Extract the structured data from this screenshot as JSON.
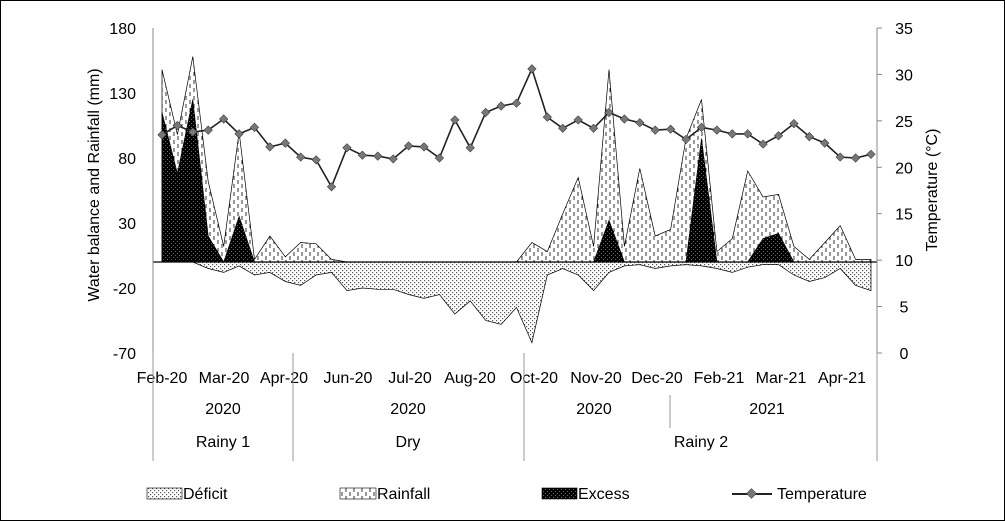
{
  "chart_data": {
    "type": "area+line",
    "title": "",
    "ylabel": "Water balance and Rainfall (mm)",
    "y2label": "Temperature (°C)",
    "ylim": [
      -70,
      180
    ],
    "y2lim": [
      0,
      35
    ],
    "yticks": [
      "180",
      "130",
      "80",
      "30",
      "-20",
      "-70"
    ],
    "y2ticks": [
      "35",
      "30",
      "25",
      "20",
      "15",
      "10",
      "5",
      "0"
    ],
    "x_month_labels": [
      "Feb-20",
      "Mar-20",
      "Apr-20",
      "Jun-20",
      "Jul-20",
      "Aug-20",
      "Oct-20",
      "Nov-20",
      "Dec-20",
      "Feb-21",
      "Mar-21",
      "Apr-21"
    ],
    "year_labels": [
      "2020",
      "2020",
      "2020",
      "2021"
    ],
    "season_labels": [
      "Rainy 1",
      "Dry",
      "Rainy 2"
    ],
    "legend": [
      "Déficit",
      "Rainfall",
      "Excess",
      "Temperature"
    ],
    "series": [
      {
        "name": "Rainfall",
        "values": [
          148,
          98,
          158,
          62,
          12,
          100,
          2,
          20,
          4,
          15,
          14,
          2,
          0,
          0,
          0,
          0,
          0,
          0,
          0,
          0,
          0,
          0,
          0,
          0,
          15,
          8,
          37,
          65,
          12,
          148,
          12,
          72,
          20,
          25,
          95,
          125,
          8,
          18,
          70,
          50,
          52,
          12,
          2,
          15,
          28,
          2,
          2
        ]
      },
      {
        "name": "Excess",
        "values": [
          115,
          68,
          125,
          20,
          0,
          35,
          0,
          0,
          0,
          0,
          0,
          0,
          0,
          0,
          0,
          0,
          0,
          0,
          0,
          0,
          0,
          0,
          0,
          0,
          0,
          0,
          0,
          0,
          0,
          32,
          0,
          0,
          0,
          0,
          0,
          95,
          0,
          0,
          0,
          18,
          22,
          0,
          0,
          0,
          0,
          0,
          0
        ]
      },
      {
        "name": "Déficit",
        "values": [
          0,
          0,
          0,
          -5,
          -8,
          -3,
          -10,
          -8,
          -15,
          -18,
          -10,
          -8,
          -22,
          -20,
          -21,
          -21,
          -25,
          -28,
          -25,
          -40,
          -30,
          -45,
          -48,
          -35,
          -62,
          -10,
          -5,
          -10,
          -22,
          -8,
          -3,
          -2,
          -5,
          -3,
          -2,
          -3,
          -5,
          -8,
          -4,
          -2,
          -2,
          -10,
          -15,
          -12,
          -5,
          -18,
          -22
        ]
      },
      {
        "name": "Temperature",
        "values": [
          23.5,
          24.5,
          23.8,
          24.0,
          25.2,
          23.6,
          24.3,
          22.2,
          22.6,
          21.1,
          20.8,
          17.9,
          22.1,
          21.3,
          21.2,
          20.9,
          22.3,
          22.2,
          21.0,
          25.1,
          22.1,
          25.9,
          26.6,
          26.9,
          30.6,
          25.4,
          24.2,
          25.1,
          24.2,
          25.9,
          25.2,
          24.8,
          24.0,
          24.1,
          23.0,
          24.3,
          24.0,
          23.6,
          23.6,
          22.5,
          23.4,
          24.7,
          23.3,
          22.6,
          21.1,
          21.0,
          21.4
        ]
      }
    ]
  }
}
